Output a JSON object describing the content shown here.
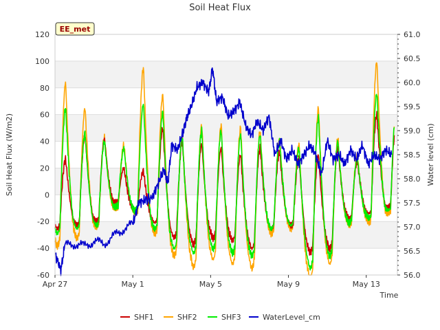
{
  "chart_data": {
    "type": "line",
    "title": "Soil Heat Flux",
    "xlabel": "Time",
    "ylabel": "Soil Heat Flux (W/m2)",
    "y2label": "Water level (cm)",
    "site_badge": "EE_met",
    "xlim": [
      0,
      17.6
    ],
    "ylim": [
      -60,
      120
    ],
    "y2lim": [
      56.0,
      61.0
    ],
    "xticks": [
      {
        "label": "Apr 27",
        "day": 0
      },
      {
        "label": "May 1",
        "day": 4
      },
      {
        "label": "May 5",
        "day": 8
      },
      {
        "label": "May 9",
        "day": 12
      },
      {
        "label": "May 13",
        "day": 16
      }
    ],
    "yticks": [
      "-60",
      "-40",
      "-20",
      "0",
      "20",
      "40",
      "60",
      "80",
      "100",
      "120"
    ],
    "y2ticks": [
      "56.0",
      "56.5",
      "57.0",
      "57.5",
      "58.0",
      "58.5",
      "59.0",
      "59.5",
      "60.0",
      "60.5",
      "61.0"
    ],
    "bands": [
      [
        -40,
        -20
      ],
      [
        0,
        20
      ],
      [
        40,
        60
      ],
      [
        80,
        100
      ]
    ],
    "days": [
      0,
      1,
      2,
      3,
      4,
      5,
      6,
      7,
      8,
      9,
      10,
      11,
      12,
      13,
      14,
      15,
      16,
      17
    ],
    "series": [
      {
        "name": "SHF1",
        "color": "#cc0000",
        "peaks": [
          27,
          45,
          42,
          20,
          18,
          50,
          40,
          38,
          35,
          30,
          35,
          32,
          28,
          30,
          35,
          25,
          60,
          55
        ],
        "troughs": [
          -22,
          -20,
          -18,
          -5,
          -10,
          -18,
          -28,
          -32,
          -28,
          -30,
          -35,
          -22,
          -20,
          -38,
          -35,
          -15,
          -12,
          -8
        ]
      },
      {
        "name": "SHF2",
        "color": "#ffa500",
        "peaks": [
          84,
          65,
          43,
          37,
          95,
          75,
          45,
          52,
          52,
          50,
          48,
          42,
          38,
          65,
          42,
          30,
          100,
          65
        ],
        "troughs": [
          -33,
          -28,
          -22,
          -10,
          -12,
          -25,
          -40,
          -47,
          -42,
          -45,
          -48,
          -25,
          -22,
          -55,
          -45,
          -20,
          -18,
          -12
        ]
      },
      {
        "name": "SHF3",
        "color": "#00ee00",
        "peaks": [
          65,
          46,
          40,
          35,
          68,
          62,
          43,
          48,
          48,
          45,
          45,
          40,
          35,
          58,
          40,
          28,
          76,
          65
        ],
        "troughs": [
          -25,
          -22,
          -20,
          -8,
          -10,
          -22,
          -35,
          -38,
          -35,
          -38,
          -40,
          -22,
          -20,
          -48,
          -40,
          -18,
          -15,
          -10
        ]
      },
      {
        "name": "WaterLevel_cm",
        "color": "#0000cc",
        "axis": "right",
        "x": [
          0,
          0.3,
          0.5,
          1.0,
          1.5,
          2.0,
          2.5,
          3.0,
          3.5,
          4.0,
          4.3,
          4.6,
          5.0,
          5.3,
          5.6,
          5.8,
          6.0,
          6.3,
          6.6,
          6.8,
          7.0,
          7.3,
          7.6,
          7.9,
          8.1,
          8.3,
          8.6,
          8.9,
          9.2,
          9.5,
          9.8,
          10.1,
          10.4,
          10.7,
          11.0,
          11.3,
          11.6,
          11.9,
          12.2,
          12.5,
          12.8,
          13.1,
          13.4,
          13.7,
          14.0,
          14.3,
          14.6,
          14.9,
          15.2,
          15.5,
          15.8,
          16.1,
          16.4,
          16.7,
          17.0,
          17.3
        ],
        "y": [
          56.45,
          56.1,
          56.6,
          56.65,
          56.6,
          56.7,
          56.65,
          56.8,
          56.95,
          57.05,
          57.5,
          57.55,
          57.6,
          57.9,
          58.2,
          57.9,
          58.7,
          58.6,
          59.0,
          59.3,
          59.5,
          59.9,
          60.0,
          59.8,
          60.3,
          59.6,
          59.7,
          59.3,
          59.4,
          59.6,
          59.1,
          58.9,
          59.2,
          59.0,
          59.3,
          58.5,
          58.8,
          58.4,
          58.6,
          58.3,
          58.5,
          58.7,
          58.5,
          58.1,
          58.8,
          58.4,
          58.5,
          58.3,
          58.6,
          58.4,
          58.7,
          58.3,
          58.5,
          58.4,
          58.6,
          58.5
        ]
      }
    ]
  }
}
